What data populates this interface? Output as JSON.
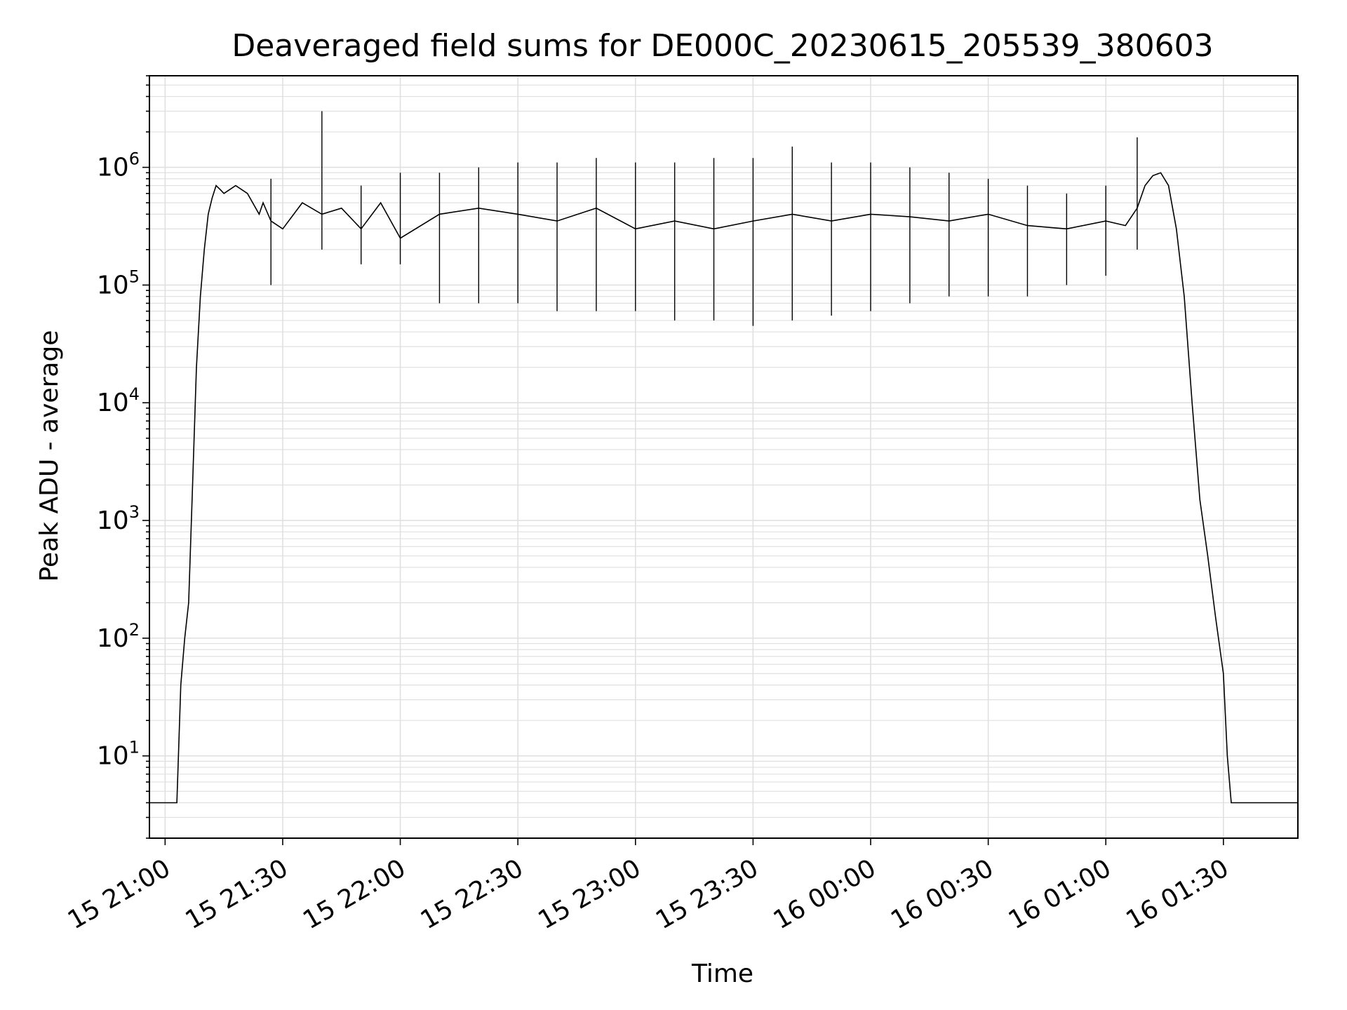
{
  "chart_data": {
    "type": "line",
    "title": "Deaveraged field sums for DE000C_20230615_205539_380603",
    "xlabel": "Time",
    "ylabel": "Peak ADU - average",
    "yscale": "log",
    "ylim": [
      2,
      6000000
    ],
    "xlim": [
      "2023-06-15 20:56",
      "2023-06-16 01:49"
    ],
    "grid": true,
    "line_color": "#000000",
    "grid_color": "#e0e0e0",
    "x_ticks": [
      {
        "value": "2023-06-15 21:00",
        "label": "15 21:00"
      },
      {
        "value": "2023-06-15 21:30",
        "label": "15 21:30"
      },
      {
        "value": "2023-06-15 22:00",
        "label": "15 22:00"
      },
      {
        "value": "2023-06-15 22:30",
        "label": "15 22:30"
      },
      {
        "value": "2023-06-15 23:00",
        "label": "15 23:00"
      },
      {
        "value": "2023-06-15 23:30",
        "label": "15 23:30"
      },
      {
        "value": "2023-06-16 00:00",
        "label": "16 00:00"
      },
      {
        "value": "2023-06-16 00:30",
        "label": "16 00:30"
      },
      {
        "value": "2023-06-16 01:00",
        "label": "16 01:00"
      },
      {
        "value": "2023-06-16 01:30",
        "label": "16 01:30"
      }
    ],
    "y_ticks": [
      {
        "value": 10,
        "base": "10",
        "exp": "1"
      },
      {
        "value": 100,
        "base": "10",
        "exp": "2"
      },
      {
        "value": 1000,
        "base": "10",
        "exp": "3"
      },
      {
        "value": 10000,
        "base": "10",
        "exp": "4"
      },
      {
        "value": 100000,
        "base": "10",
        "exp": "5"
      },
      {
        "value": 1000000,
        "base": "10",
        "exp": "6"
      }
    ],
    "series": [
      {
        "x": [
          "2023-06-15 20:56",
          "2023-06-15 21:03",
          "2023-06-15 21:04",
          "2023-06-15 21:05",
          "2023-06-15 21:06",
          "2023-06-15 21:07",
          "2023-06-15 21:08",
          "2023-06-15 21:09",
          "2023-06-15 21:10",
          "2023-06-15 21:11",
          "2023-06-15 21:12",
          "2023-06-15 21:13",
          "2023-06-15 21:14",
          "2023-06-15 21:15",
          "2023-06-15 21:18",
          "2023-06-15 21:21",
          "2023-06-15 21:24",
          "2023-06-15 21:25",
          "2023-06-15 21:27",
          "2023-06-15 21:30",
          "2023-06-15 21:35",
          "2023-06-15 21:40",
          "2023-06-15 21:45",
          "2023-06-15 21:50",
          "2023-06-15 21:55",
          "2023-06-15 22:00",
          "2023-06-15 22:10",
          "2023-06-15 22:20",
          "2023-06-15 22:30",
          "2023-06-15 22:40",
          "2023-06-15 22:50",
          "2023-06-15 23:00",
          "2023-06-15 23:10",
          "2023-06-15 23:20",
          "2023-06-15 23:30",
          "2023-06-15 23:40",
          "2023-06-15 23:50",
          "2023-06-16 00:00",
          "2023-06-16 00:10",
          "2023-06-16 00:20",
          "2023-06-16 00:30",
          "2023-06-16 00:40",
          "2023-06-16 00:50",
          "2023-06-16 01:00",
          "2023-06-16 01:05",
          "2023-06-16 01:08",
          "2023-06-16 01:10",
          "2023-06-16 01:12",
          "2023-06-16 01:14",
          "2023-06-16 01:16",
          "2023-06-16 01:18",
          "2023-06-16 01:20",
          "2023-06-16 01:22",
          "2023-06-16 01:24",
          "2023-06-16 01:26",
          "2023-06-16 01:28",
          "2023-06-16 01:30",
          "2023-06-16 01:31",
          "2023-06-16 01:32",
          "2023-06-16 01:49"
        ],
        "y": [
          4,
          4,
          40,
          100,
          200,
          2000,
          20000,
          80000,
          200000,
          400000,
          550000,
          700000,
          650000,
          600000,
          700000,
          600000,
          400000,
          500000,
          350000,
          300000,
          500000,
          400000,
          450000,
          300000,
          500000,
          250000,
          400000,
          450000,
          400000,
          350000,
          450000,
          300000,
          350000,
          300000,
          350000,
          400000,
          350000,
          400000,
          380000,
          350000,
          400000,
          320000,
          300000,
          350000,
          320000,
          450000,
          700000,
          850000,
          900000,
          700000,
          300000,
          80000,
          10000,
          1500,
          500,
          150,
          50,
          10,
          4,
          4
        ],
        "spikes": [
          {
            "x": "2023-06-15 21:27",
            "low": 100000,
            "high": 800000
          },
          {
            "x": "2023-06-15 21:40",
            "low": 200000,
            "high": 3000000
          },
          {
            "x": "2023-06-15 21:50",
            "low": 150000,
            "high": 700000
          },
          {
            "x": "2023-06-15 22:00",
            "low": 150000,
            "high": 900000
          },
          {
            "x": "2023-06-15 22:10",
            "low": 70000,
            "high": 900000
          },
          {
            "x": "2023-06-15 22:20",
            "low": 70000,
            "high": 1000000
          },
          {
            "x": "2023-06-15 22:30",
            "low": 70000,
            "high": 1100000
          },
          {
            "x": "2023-06-15 22:40",
            "low": 60000,
            "high": 1100000
          },
          {
            "x": "2023-06-15 22:50",
            "low": 60000,
            "high": 1200000
          },
          {
            "x": "2023-06-15 23:00",
            "low": 60000,
            "high": 1100000
          },
          {
            "x": "2023-06-15 23:10",
            "low": 50000,
            "high": 1100000
          },
          {
            "x": "2023-06-15 23:20",
            "low": 50000,
            "high": 1200000
          },
          {
            "x": "2023-06-15 23:30",
            "low": 45000,
            "high": 1200000
          },
          {
            "x": "2023-06-15 23:40",
            "low": 50000,
            "high": 1500000
          },
          {
            "x": "2023-06-15 23:50",
            "low": 55000,
            "high": 1100000
          },
          {
            "x": "2023-06-16 00:00",
            "low": 60000,
            "high": 1100000
          },
          {
            "x": "2023-06-16 00:10",
            "low": 70000,
            "high": 1000000
          },
          {
            "x": "2023-06-16 00:20",
            "low": 80000,
            "high": 900000
          },
          {
            "x": "2023-06-16 00:30",
            "low": 80000,
            "high": 800000
          },
          {
            "x": "2023-06-16 00:40",
            "low": 80000,
            "high": 700000
          },
          {
            "x": "2023-06-16 00:50",
            "low": 100000,
            "high": 600000
          },
          {
            "x": "2023-06-16 01:00",
            "low": 120000,
            "high": 700000
          },
          {
            "x": "2023-06-16 01:08",
            "low": 200000,
            "high": 1800000
          }
        ]
      }
    ]
  }
}
